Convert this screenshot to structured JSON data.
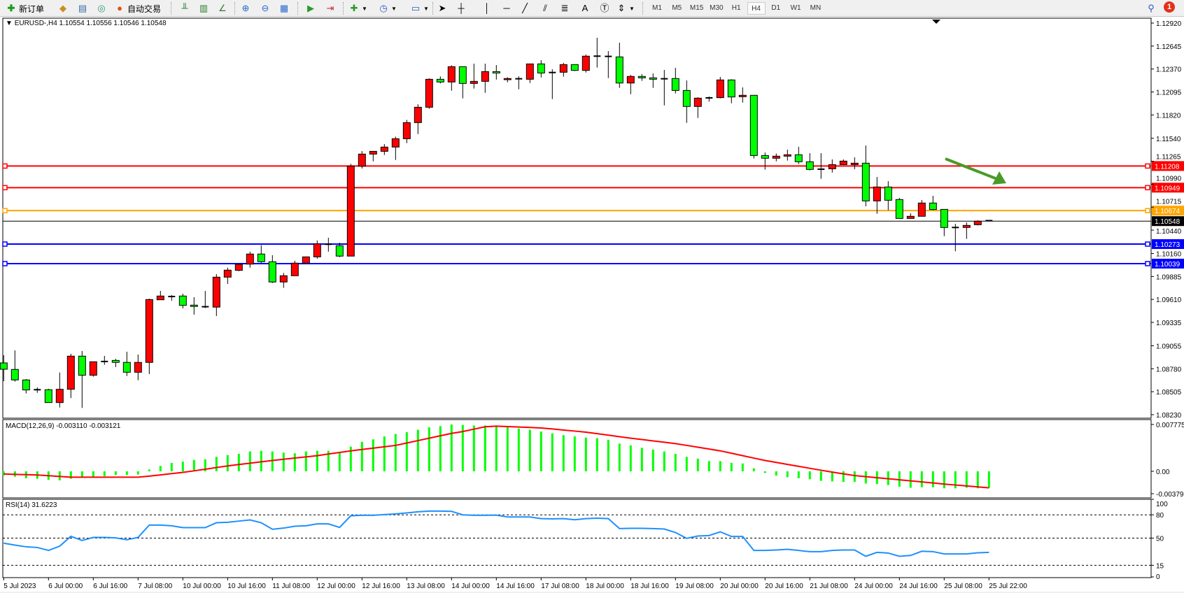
{
  "toolbar": {
    "new_order": "新订单",
    "auto_trading": "自动交易",
    "icons": [
      "new-order-icon",
      "market-watch-icon",
      "data-window-icon",
      "navigator-icon",
      "auto-trading-icon",
      "bar-chart-icon",
      "candlestick-icon",
      "line-chart-icon",
      "zoom-in-icon",
      "zoom-out-icon",
      "tile-windows-icon",
      "autoscroll-icon",
      "chart-shift-icon",
      "indicators-icon",
      "periods-icon",
      "templates-icon",
      "cursor-icon",
      "crosshair-icon",
      "vertical-line-icon",
      "horizontal-line-icon",
      "trendline-icon",
      "equidistant-channel-icon",
      "fibonacci-icon",
      "text-icon",
      "text-label-icon",
      "arrows-icon"
    ],
    "periods": [
      "M1",
      "M5",
      "M15",
      "M30",
      "H1",
      "H4",
      "D1",
      "W1",
      "MN"
    ],
    "selected_period": "H4",
    "notification_count": "1"
  },
  "chart_data": {
    "type": "candlestick",
    "symbol_header": "EURUSD-,H4  1.10554 1.10556 1.10546 1.10548",
    "bull_color": "#ff0000",
    "bear_color": "#00ff00",
    "ylim": [
      1.0823,
      1.1292
    ],
    "y_ticks": [
      "1.12920",
      "1.12645",
      "1.12370",
      "1.12095",
      "1.11820",
      "1.11540",
      "1.11265",
      "1.10990",
      "1.10715",
      "1.10440",
      "1.10160",
      "1.09885",
      "1.09610",
      "1.09335",
      "1.09055",
      "1.08780",
      "1.08505",
      "1.08230"
    ],
    "x_labels": [
      [
        0,
        "5 Jul 2023"
      ],
      [
        4,
        "6 Jul 00:00"
      ],
      [
        8,
        "6 Jul 16:00"
      ],
      [
        12,
        "7 Jul 08:00"
      ],
      [
        16,
        "10 Jul 00:00"
      ],
      [
        20,
        "10 Jul 16:00"
      ],
      [
        24,
        "11 Jul 08:00"
      ],
      [
        28,
        "12 Jul 00:00"
      ],
      [
        32,
        "12 Jul 16:00"
      ],
      [
        36,
        "13 Jul 08:00"
      ],
      [
        40,
        "14 Jul 00:00"
      ],
      [
        44,
        "14 Jul 16:00"
      ],
      [
        48,
        "17 Jul 08:00"
      ],
      [
        52,
        "18 Jul 00:00"
      ],
      [
        56,
        "18 Jul 16:00"
      ],
      [
        60,
        "19 Jul 08:00"
      ],
      [
        64,
        "20 Jul 00:00"
      ],
      [
        68,
        "20 Jul 16:00"
      ],
      [
        72,
        "21 Jul 08:00"
      ],
      [
        76,
        "24 Jul 00:00"
      ],
      [
        80,
        "24 Jul 16:00"
      ],
      [
        84,
        "25 Jul 08:00"
      ],
      [
        88,
        "25 Jul 22:00"
      ]
    ],
    "ohlc": [
      [
        1.0885,
        1.08942,
        1.08632,
        1.08774
      ],
      [
        1.08772,
        1.09,
        1.08626,
        1.08646
      ],
      [
        1.08646,
        1.08657,
        1.08484,
        1.08526
      ],
      [
        1.08529,
        1.08557,
        1.08492,
        1.08529
      ],
      [
        1.08529,
        1.0854,
        1.08375,
        1.08375
      ],
      [
        1.08375,
        1.08735,
        1.08316,
        1.08534
      ],
      [
        1.08534,
        1.08959,
        1.08429,
        1.08931
      ],
      [
        1.08931,
        1.08992,
        1.08311,
        1.08702
      ],
      [
        1.08702,
        1.08864,
        1.08685,
        1.08864
      ],
      [
        1.08867,
        1.08934,
        1.08827,
        1.08867
      ],
      [
        1.0888,
        1.089,
        1.088,
        1.08856
      ],
      [
        1.08856,
        1.08984,
        1.08693,
        1.08738
      ],
      [
        1.08738,
        1.0895,
        1.08643,
        1.08856
      ],
      [
        1.08856,
        1.0962,
        1.08716,
        1.09609
      ],
      [
        1.09606,
        1.09712,
        1.09606,
        1.09651
      ],
      [
        1.09645,
        1.09662,
        1.09595,
        1.09645
      ],
      [
        1.09651,
        1.09679,
        1.09503,
        1.09539
      ],
      [
        1.09542,
        1.09637,
        1.09428,
        1.09526
      ],
      [
        1.09523,
        1.09712,
        1.09506,
        1.09523
      ],
      [
        1.09518,
        1.09913,
        1.09411,
        1.09877
      ],
      [
        1.09877,
        1.09991,
        1.09796,
        1.09961
      ],
      [
        1.09958,
        1.1004,
        1.09949,
        1.10031
      ],
      [
        1.10033,
        1.10182,
        1.09991,
        1.10154
      ],
      [
        1.10154,
        1.1026,
        1.10047,
        1.10062
      ],
      [
        1.10062,
        1.1014,
        1.09807,
        1.09819
      ],
      [
        1.09819,
        1.09928,
        1.09749,
        1.09894
      ],
      [
        1.09894,
        1.10073,
        1.09894,
        1.10045
      ],
      [
        1.10045,
        1.1012,
        1.10045,
        1.1012
      ],
      [
        1.1012,
        1.10316,
        1.10098,
        1.10276
      ],
      [
        1.10271,
        1.10349,
        1.10182,
        1.10271
      ],
      [
        1.10254,
        1.1029,
        1.10117,
        1.10129
      ],
      [
        1.10129,
        1.11234,
        1.10129,
        1.11206
      ],
      [
        1.11206,
        1.11387,
        1.11178,
        1.11351
      ],
      [
        1.11351,
        1.11384,
        1.11264,
        1.11384
      ],
      [
        1.11384,
        1.11471,
        1.1134,
        1.11435
      ],
      [
        1.11435,
        1.1156,
        1.11281,
        1.11535
      ],
      [
        1.11535,
        1.11761,
        1.11482,
        1.11728
      ],
      [
        1.11728,
        1.11948,
        1.11591,
        1.11912
      ],
      [
        1.11912,
        1.12258,
        1.11893,
        1.12247
      ],
      [
        1.12247,
        1.12281,
        1.12197,
        1.12214
      ],
      [
        1.12214,
        1.12415,
        1.1211,
        1.12398
      ],
      [
        1.12398,
        1.12398,
        1.12018,
        1.12197
      ],
      [
        1.12197,
        1.12434,
        1.12136,
        1.12222
      ],
      [
        1.12222,
        1.12434,
        1.12085,
        1.12339
      ],
      [
        1.12339,
        1.12417,
        1.12244,
        1.12322
      ],
      [
        1.12242,
        1.12272,
        1.12211,
        1.12256
      ],
      [
        1.12253,
        1.12283,
        1.12127,
        1.12253
      ],
      [
        1.12247,
        1.12431,
        1.12202,
        1.12431
      ],
      [
        1.12431,
        1.12476,
        1.12269,
        1.12322
      ],
      [
        1.12328,
        1.12367,
        1.1201,
        1.12328
      ],
      [
        1.12331,
        1.12443,
        1.12278,
        1.12423
      ],
      [
        1.12423,
        1.12423,
        1.12345,
        1.12353
      ],
      [
        1.12353,
        1.12543,
        1.12328,
        1.12524
      ],
      [
        1.12524,
        1.12744,
        1.12387,
        1.12524
      ],
      [
        1.12521,
        1.12585,
        1.12261,
        1.12521
      ],
      [
        1.12515,
        1.12685,
        1.12144,
        1.12202
      ],
      [
        1.12202,
        1.123,
        1.12068,
        1.12281
      ],
      [
        1.12281,
        1.12309,
        1.12228,
        1.12264
      ],
      [
        1.12264,
        1.12317,
        1.12144,
        1.12247
      ],
      [
        1.12253,
        1.12359,
        1.11934,
        1.12253
      ],
      [
        1.12256,
        1.12384,
        1.12077,
        1.12113
      ],
      [
        1.12113,
        1.12233,
        1.11725,
        1.11921
      ],
      [
        1.11921,
        1.12032,
        1.11784,
        1.12021
      ],
      [
        1.12024,
        1.12041,
        1.11979,
        1.12024
      ],
      [
        1.12027,
        1.12275,
        1.12018,
        1.12239
      ],
      [
        1.12239,
        1.12247,
        1.1196,
        1.12035
      ],
      [
        1.12038,
        1.1215,
        1.11968,
        1.12055
      ],
      [
        1.12055,
        1.12055,
        1.11298,
        1.11334
      ],
      [
        1.11334,
        1.1137,
        1.11164,
        1.11301
      ],
      [
        1.11301,
        1.11357,
        1.11264,
        1.11326
      ],
      [
        1.11326,
        1.11404,
        1.11273,
        1.11343
      ],
      [
        1.11343,
        1.11438,
        1.11231,
        1.11259
      ],
      [
        1.11259,
        1.11362,
        1.11156,
        1.11167
      ],
      [
        1.1117,
        1.11362,
        1.11055,
        1.1117
      ],
      [
        1.11175,
        1.11287,
        1.1113,
        1.11225
      ],
      [
        1.11225,
        1.11287,
        1.1122,
        1.11267
      ],
      [
        1.11225,
        1.11312,
        1.1117,
        1.11242
      ],
      [
        1.11242,
        1.11454,
        1.10726,
        1.1079
      ],
      [
        1.1079,
        1.11077,
        1.10636,
        1.10957
      ],
      [
        1.10957,
        1.11027,
        1.10678,
        1.10798
      ],
      [
        1.10807,
        1.10826,
        1.1058,
        1.1058
      ],
      [
        1.1058,
        1.10642,
        1.1058,
        1.10606
      ],
      [
        1.10606,
        1.10801,
        1.10606,
        1.10765
      ],
      [
        1.10765,
        1.10851,
        1.10678,
        1.10687
      ],
      [
        1.10689,
        1.10689,
        1.10368,
        1.10472
      ],
      [
        1.10472,
        1.10516,
        1.10187,
        1.10472
      ],
      [
        1.10472,
        1.10533,
        1.10335,
        1.10497
      ],
      [
        1.10505,
        1.10558,
        1.10497,
        1.10547
      ],
      [
        1.10554,
        1.10556,
        1.10546,
        1.10548
      ]
    ],
    "levels": [
      {
        "price": "1.11208",
        "color": "#ff0000"
      },
      {
        "price": "1.10949",
        "color": "#ff0000"
      },
      {
        "price": "1.10674",
        "color": "#ffa500"
      },
      {
        "price": "1.10548",
        "color": "#000000",
        "current": true
      },
      {
        "price": "1.10273",
        "color": "#0000ff"
      },
      {
        "price": "1.10039",
        "color": "#0000ff"
      }
    ],
    "arrow_annotation": {
      "color": "#4a9a2a",
      "direction": "down-right"
    },
    "macd": {
      "label": "MACD(12,26,9) -0.003110 -0.003121",
      "ylim": [
        -0.003797,
        0.007775
      ],
      "y_ticks": [
        "0.007775",
        "0.00",
        "-0.003797"
      ],
      "hist_color": "#00ff00",
      "signal_color": "#ff0000",
      "main": [
        -0.0008,
        -0.001,
        -0.0013,
        -0.0014,
        -0.0016,
        -0.0017,
        -0.0014,
        -0.0011,
        -0.001,
        -0.0009,
        -0.0007,
        -0.0007,
        -0.0006,
        0.0003,
        0.0009,
        0.0014,
        0.0016,
        0.0019,
        0.002,
        0.0024,
        0.0027,
        0.0029,
        0.0033,
        0.0034,
        0.0033,
        0.0031,
        0.003,
        0.0033,
        0.0034,
        0.0034,
        0.0032,
        0.0041,
        0.0049,
        0.0053,
        0.0058,
        0.0062,
        0.0065,
        0.0069,
        0.0073,
        0.0075,
        0.00777,
        0.0077,
        0.0076,
        0.0076,
        0.0076,
        0.0074,
        0.0071,
        0.0069,
        0.0066,
        0.0063,
        0.006,
        0.0058,
        0.0056,
        0.0055,
        0.0052,
        0.0046,
        0.0043,
        0.0039,
        0.0036,
        0.0033,
        0.0029,
        0.0024,
        0.0021,
        0.0017,
        0.0017,
        0.0014,
        0.0013,
        0.0005,
        -0.0003,
        -0.0008,
        -0.0011,
        -0.0013,
        -0.0015,
        -0.0018,
        -0.0019,
        -0.002,
        -0.002,
        -0.0023,
        -0.0024,
        -0.0026,
        -0.0029,
        -0.0031,
        -0.003,
        -0.003,
        -0.0032,
        -0.0032,
        -0.0031,
        -0.0032,
        -0.00311
      ],
      "signal": [
        -0.0005,
        -0.00057,
        -0.00063,
        -0.0007,
        -0.00083,
        -0.00097,
        -0.0011,
        -0.0011,
        -0.0011,
        -0.0011,
        -0.0011,
        -0.0011,
        -0.0011,
        -0.0009,
        -0.00067,
        -0.00043,
        -0.0002,
        8e-05,
        0.00035,
        0.00063,
        0.0009,
        0.00113,
        0.00135,
        0.00158,
        0.0018,
        0.002,
        0.0022,
        0.0024,
        0.0026,
        0.00287,
        0.00313,
        0.0034,
        0.00363,
        0.00385,
        0.00408,
        0.0043,
        0.0047,
        0.0051,
        0.0055,
        0.0059,
        0.0063,
        0.0066,
        0.007,
        0.0074,
        0.0075,
        0.00743,
        0.00735,
        0.00728,
        0.0072,
        0.00703,
        0.00685,
        0.00668,
        0.0065,
        0.00625,
        0.006,
        0.00575,
        0.0055,
        0.00528,
        0.00505,
        0.00483,
        0.0046,
        0.0043,
        0.004,
        0.0037,
        0.0034,
        0.003,
        0.0026,
        0.0022,
        0.0018,
        0.00148,
        0.00115,
        0.00083,
        0.0005,
        0.00018,
        -0.00015,
        -0.00048,
        -0.0008,
        -0.001,
        -0.0012,
        -0.0014,
        -0.0016,
        -0.0018,
        -0.002,
        -0.0022,
        -0.0024,
        -0.00258,
        -0.00276,
        -0.00294,
        -0.003121
      ]
    },
    "rsi": {
      "label": "RSI(14) 31.6223",
      "ylim": [
        0,
        100
      ],
      "levels": [
        80,
        50,
        15
      ],
      "y_ticks": [
        "100",
        "80",
        "50",
        "15",
        "0"
      ],
      "color": "#1e90ff",
      "values": [
        43.5,
        41,
        38.8,
        37.9,
        34.2,
        39.6,
        52.3,
        47,
        50.9,
        50.9,
        50.3,
        47.9,
        50.9,
        66.8,
        66.8,
        65.9,
        63.5,
        63.5,
        63.5,
        69.8,
        70.4,
        71.9,
        73.4,
        69.8,
        61.4,
        62.9,
        65.3,
        65.9,
        68.3,
        68.3,
        63.8,
        78.8,
        79.4,
        79.4,
        80.3,
        81.2,
        82.4,
        83.9,
        84.8,
        84.8,
        84.5,
        80,
        79.4,
        79.4,
        79.6,
        77.2,
        77.2,
        77.2,
        75.1,
        74.8,
        75.1,
        73.6,
        75.1,
        75.7,
        75.1,
        62.3,
        62.6,
        62.6,
        62.3,
        61.7,
        57.2,
        49.7,
        52.7,
        53.3,
        58.1,
        52.1,
        52.1,
        34.1,
        34.1,
        34.7,
        35.6,
        34.1,
        32.6,
        32.6,
        34.1,
        34.7,
        34.7,
        26.6,
        31.6,
        30.7,
        26.6,
        27.7,
        33.1,
        32.6,
        29.6,
        29.6,
        29.6,
        31.1,
        31.6223
      ]
    }
  }
}
